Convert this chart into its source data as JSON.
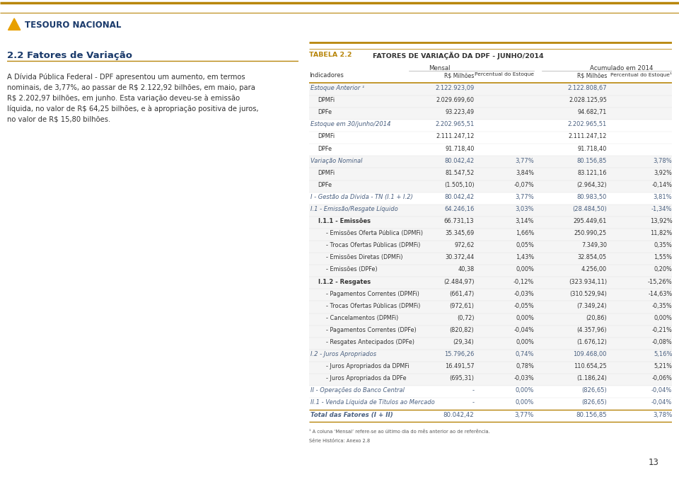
{
  "title_label": "TABELA 2.2",
  "title_text": "FATORES DE VARIAÇÃO DA DPF - JUNHO/2014",
  "group_mensal": "Mensal",
  "group_acumulado": "Acumulado em 2014",
  "rows": [
    {
      "label": "Estoque Anterior ¹",
      "indent": 0,
      "style": "italic_bold",
      "c1": "2.122.923,09",
      "c2": "",
      "c3": "2.122.808,67",
      "c4": "",
      "row_bg": "light"
    },
    {
      "label": "DPMFi",
      "indent": 1,
      "style": "normal",
      "c1": "2.029.699,60",
      "c2": "",
      "c3": "2.028.125,95",
      "c4": "",
      "row_bg": "light"
    },
    {
      "label": "DPFe",
      "indent": 1,
      "style": "normal",
      "c1": "93.223,49",
      "c2": "",
      "c3": "94.682,71",
      "c4": "",
      "row_bg": "light"
    },
    {
      "label": "Estoque em 30/junho/2014",
      "indent": 0,
      "style": "italic_bold",
      "c1": "2.202.965,51",
      "c2": "",
      "c3": "2.202.965,51",
      "c4": "",
      "row_bg": "white"
    },
    {
      "label": "DPMFi",
      "indent": 1,
      "style": "normal",
      "c1": "2.111.247,12",
      "c2": "",
      "c3": "2.111.247,12",
      "c4": "",
      "row_bg": "white"
    },
    {
      "label": "DPFe",
      "indent": 1,
      "style": "normal",
      "c1": "91.718,40",
      "c2": "",
      "c3": "91.718,40",
      "c4": "",
      "row_bg": "white"
    },
    {
      "label": "Variação Nominal",
      "indent": 0,
      "style": "italic_bold",
      "c1": "80.042,42",
      "c2": "3,77%",
      "c3": "80.156,85",
      "c4": "3,78%",
      "row_bg": "light"
    },
    {
      "label": "DPMFi",
      "indent": 1,
      "style": "normal",
      "c1": "81.547,52",
      "c2": "3,84%",
      "c3": "83.121,16",
      "c4": "3,92%",
      "row_bg": "light"
    },
    {
      "label": "DPFe",
      "indent": 1,
      "style": "normal",
      "c1": "(1.505,10)",
      "c2": "-0,07%",
      "c3": "(2.964,32)",
      "c4": "-0,14%",
      "row_bg": "light"
    },
    {
      "label": "I - Gestão da Dívida - TN (I.1 + I.2)",
      "indent": 0,
      "style": "italic_bold",
      "c1": "80.042,42",
      "c2": "3,77%",
      "c3": "80.983,50",
      "c4": "3,81%",
      "row_bg": "white"
    },
    {
      "label": "I.1 - Emissão/Resgate Líquido",
      "indent": 0,
      "style": "italic_bold",
      "c1": "64.246,16",
      "c2": "3,03%",
      "c3": "(28.484,50)",
      "c4": "-1,34%",
      "row_bg": "light"
    },
    {
      "label": "I.1.1 - Emissões",
      "indent": 1,
      "style": "bold",
      "c1": "66.731,13",
      "c2": "3,14%",
      "c3": "295.449,61",
      "c4": "13,92%",
      "row_bg": "light"
    },
    {
      "label": "- Emissões Oferta Pública (DPMFi)",
      "indent": 2,
      "style": "normal",
      "c1": "35.345,69",
      "c2": "1,66%",
      "c3": "250.990,25",
      "c4": "11,82%",
      "row_bg": "light"
    },
    {
      "label": "- Trocas Ofertas Públicas (DPMFi)",
      "indent": 2,
      "style": "normal",
      "c1": "972,62",
      "c2": "0,05%",
      "c3": "7.349,30",
      "c4": "0,35%",
      "row_bg": "light"
    },
    {
      "label": "- Emissões Diretas (DPMFi)",
      "indent": 2,
      "style": "normal",
      "c1": "30.372,44",
      "c2": "1,43%",
      "c3": "32.854,05",
      "c4": "1,55%",
      "row_bg": "light"
    },
    {
      "label": "- Emissões (DPFe)",
      "indent": 2,
      "style": "normal",
      "c1": "40,38",
      "c2": "0,00%",
      "c3": "4.256,00",
      "c4": "0,20%",
      "row_bg": "light"
    },
    {
      "label": "I.1.2 - Resgates",
      "indent": 1,
      "style": "bold",
      "c1": "(2.484,97)",
      "c2": "-0,12%",
      "c3": "(323.934,11)",
      "c4": "-15,26%",
      "row_bg": "light"
    },
    {
      "label": "- Pagamentos Correntes (DPMFi)",
      "indent": 2,
      "style": "normal",
      "c1": "(661,47)",
      "c2": "-0,03%",
      "c3": "(310.529,94)",
      "c4": "-14,63%",
      "row_bg": "light"
    },
    {
      "label": "- Trocas Ofertas Públicas (DPMFi)",
      "indent": 2,
      "style": "normal",
      "c1": "(972,61)",
      "c2": "-0,05%",
      "c3": "(7.349,24)",
      "c4": "-0,35%",
      "row_bg": "light"
    },
    {
      "label": "- Cancelamentos (DPMFi)",
      "indent": 2,
      "style": "normal",
      "c1": "(0,72)",
      "c2": "0,00%",
      "c3": "(20,86)",
      "c4": "0,00%",
      "row_bg": "light"
    },
    {
      "label": "- Pagamentos Correntes (DPFe)",
      "indent": 2,
      "style": "normal",
      "c1": "(820,82)",
      "c2": "-0,04%",
      "c3": "(4.357,96)",
      "c4": "-0,21%",
      "row_bg": "light"
    },
    {
      "label": "- Resgates Antecipados (DPFe)",
      "indent": 2,
      "style": "normal",
      "c1": "(29,34)",
      "c2": "0,00%",
      "c3": "(1.676,12)",
      "c4": "-0,08%",
      "row_bg": "light"
    },
    {
      "label": "I.2 - Juros Apropriados",
      "indent": 0,
      "style": "italic_bold",
      "c1": "15.796,26",
      "c2": "0,74%",
      "c3": "109.468,00",
      "c4": "5,16%",
      "row_bg": "light"
    },
    {
      "label": "- Juros Apropriados da DPMFi",
      "indent": 2,
      "style": "normal",
      "c1": "16.491,57",
      "c2": "0,78%",
      "c3": "110.654,25",
      "c4": "5,21%",
      "row_bg": "light"
    },
    {
      "label": "- Juros Apropriados da DPFe",
      "indent": 2,
      "style": "normal",
      "c1": "(695,31)",
      "c2": "-0,03%",
      "c3": "(1.186,24)",
      "c4": "-0,06%",
      "row_bg": "light"
    },
    {
      "label": "II - Operações do Banco Central",
      "indent": 0,
      "style": "italic_bold",
      "c1": "-",
      "c2": "0,00%",
      "c3": "(826,65)",
      "c4": "-0,04%",
      "row_bg": "white"
    },
    {
      "label": "II.1 - Venda Líquida de Títulos ao Mercado",
      "indent": 0,
      "style": "italic_bold",
      "c1": "-",
      "c2": "0,00%",
      "c3": "(826,65)",
      "c4": "-0,04%",
      "row_bg": "white"
    },
    {
      "label": "Total das Fatores (I + II)",
      "indent": 0,
      "style": "total",
      "c1": "80.042,42",
      "c2": "3,77%",
      "c3": "80.156,85",
      "c4": "3,78%",
      "row_bg": "white"
    }
  ],
  "footnote1": "¹ A coluna ‘Mensal’ refere-se ao último dia do mês anterior ao de referência.",
  "footnote2": "Série Histórica: Anexo 2.8",
  "page_num": "13",
  "bg_color": "#ffffff",
  "gold_color": "#b8860b",
  "italic_color": "#4a6080",
  "normal_color": "#333333",
  "light_bg": "#f5f5f5",
  "white_bg": "#ffffff",
  "total_bg": "#e8e8e8"
}
